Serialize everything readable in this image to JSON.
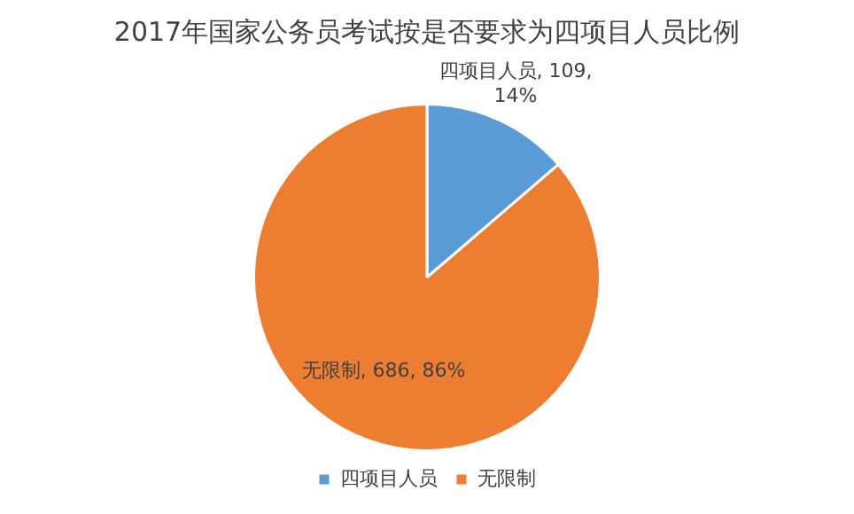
{
  "chart_data": {
    "type": "pie",
    "title": "2017年国家公务员考试按是否要求为四项目人员比例",
    "categories": [
      "四项目人员",
      "无限制"
    ],
    "values": [
      109,
      686
    ],
    "colors": [
      "#5b9bd5",
      "#ed7d31"
    ],
    "value_labels": [
      "四项目人员, 109, 14%",
      "无限制, 686, 86%"
    ],
    "legend": "bottom"
  }
}
